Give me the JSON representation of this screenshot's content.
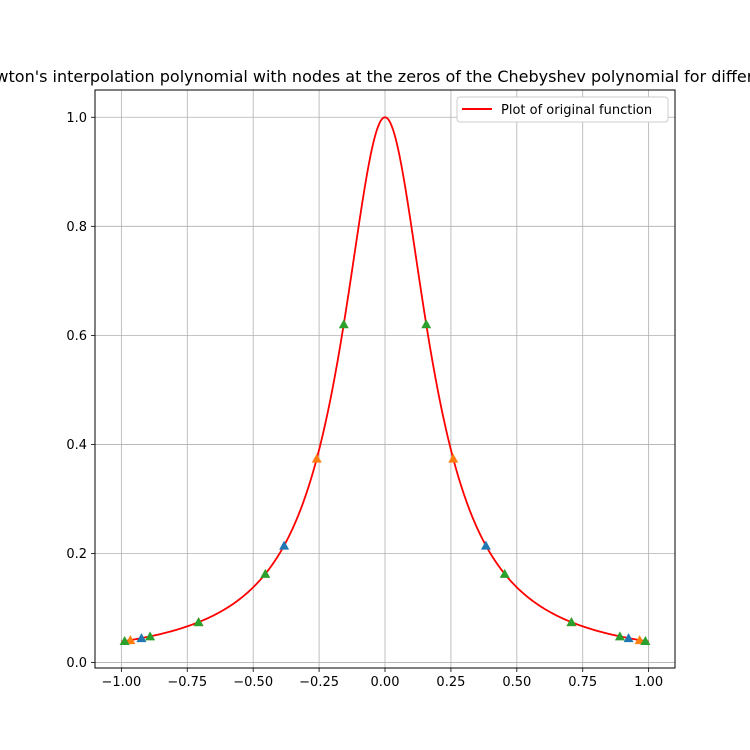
{
  "chart_data": {
    "type": "line",
    "title": "Newton's interpolation polynomial with nodes at the zeros of the Chebyshev polynomial for different n",
    "xlabel": "",
    "ylabel": "",
    "xlim": [
      -1.1,
      1.1
    ],
    "ylim": [
      -0.01,
      1.05
    ],
    "grid": true,
    "legend_position": "top-right",
    "x_ticks": [
      -1.0,
      -0.75,
      -0.5,
      -0.25,
      0.0,
      0.25,
      0.5,
      0.75,
      1.0
    ],
    "x_tick_labels": [
      "−1.00",
      "−0.75",
      "−0.50",
      "−0.25",
      "0.00",
      "0.25",
      "0.50",
      "0.75",
      "1.00"
    ],
    "y_ticks": [
      0.0,
      0.2,
      0.4,
      0.6,
      0.8,
      1.0
    ],
    "y_tick_labels": [
      "0.0",
      "0.2",
      "0.4",
      "0.6",
      "0.8",
      "1.0"
    ],
    "series": [
      {
        "name": "Plot of original function",
        "kind": "line",
        "color": "#ff0000",
        "function": "1/(1+25x^2)",
        "x_range": [
          -1.0,
          1.0
        ]
      },
      {
        "kind": "markers",
        "marker": "triangle",
        "color": "#1f77b4",
        "x": [
          -0.9239,
          -0.3827,
          0.3827,
          0.9239
        ],
        "y": [
          0.0448,
          0.2145,
          0.2145,
          0.0448
        ]
      },
      {
        "kind": "markers",
        "marker": "triangle",
        "color": "#ff7f0e",
        "x": [
          -0.9659,
          -0.7071,
          -0.2588,
          0.2588,
          0.7071,
          0.9659
        ],
        "y": [
          0.0411,
          0.0741,
          0.3739,
          0.3739,
          0.0741,
          0.0411
        ]
      },
      {
        "kind": "markers",
        "marker": "triangle",
        "color": "#2ca02c",
        "x": [
          -0.9877,
          -0.891,
          -0.7071,
          -0.454,
          -0.1564,
          0.1564,
          0.454,
          0.7071,
          0.891,
          0.9877
        ],
        "y": [
          0.0394,
          0.048,
          0.0741,
          0.1626,
          0.6205,
          0.6205,
          0.1626,
          0.0741,
          0.048,
          0.0394
        ]
      }
    ]
  }
}
